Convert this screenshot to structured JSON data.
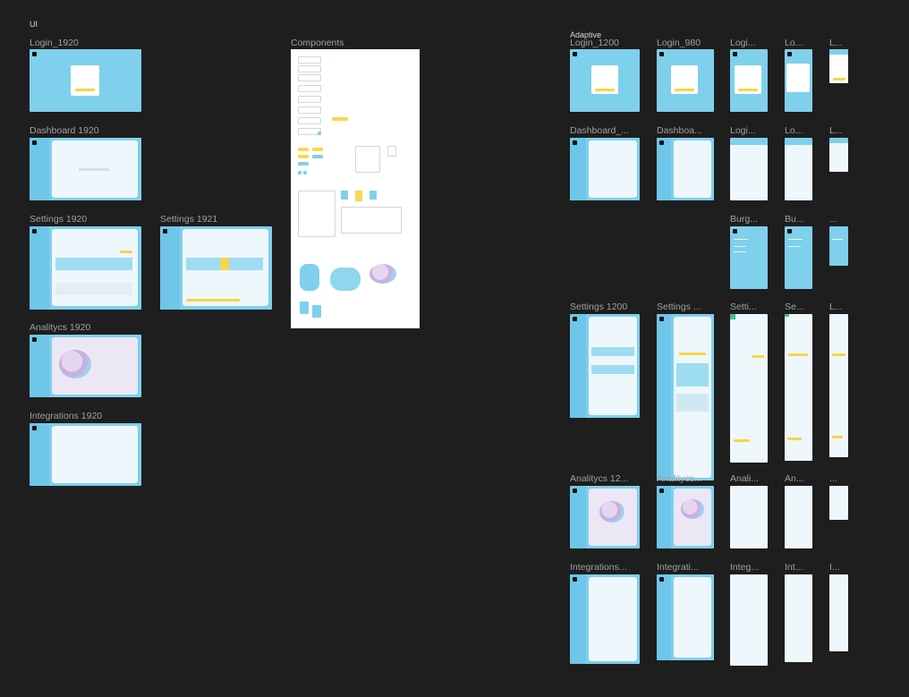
{
  "page": {
    "title": "UI",
    "adaptive_title": "Adaptive"
  },
  "ui_frames": [
    {
      "label": "Login_1920"
    },
    {
      "label": "Components"
    },
    {
      "label": "Dashboard 1920"
    },
    {
      "label": "Settings 1920"
    },
    {
      "label": "Settings 1921"
    },
    {
      "label": "Analitycs 1920"
    },
    {
      "label": "Integrations 1920"
    }
  ],
  "adaptive_frames": {
    "row1": [
      "Login_1200",
      "Login_980",
      "Logi...",
      "Lo...",
      "L..."
    ],
    "row2": [
      "Dashboard_...",
      "Dashboa...",
      "Logi...",
      "Lo...",
      "L..."
    ],
    "row3": [
      "Burg...",
      "Bu...",
      "..."
    ],
    "row4": [
      "Settings 1200",
      "Settings ...",
      "Setti...",
      "Se...",
      "L..."
    ],
    "row5": [
      "Analitycs 12...",
      "Analitycs...",
      "Anali...",
      "An...",
      "..."
    ],
    "row6": [
      "Integrations...",
      "Integrati...",
      "Integ...",
      "Int...",
      "I..."
    ]
  },
  "colors": {
    "canvas": "#1e1e1e",
    "frame_blue": "#7fd0ec",
    "accent_yellow": "#f6d64a",
    "panel": "#eef7fc"
  }
}
